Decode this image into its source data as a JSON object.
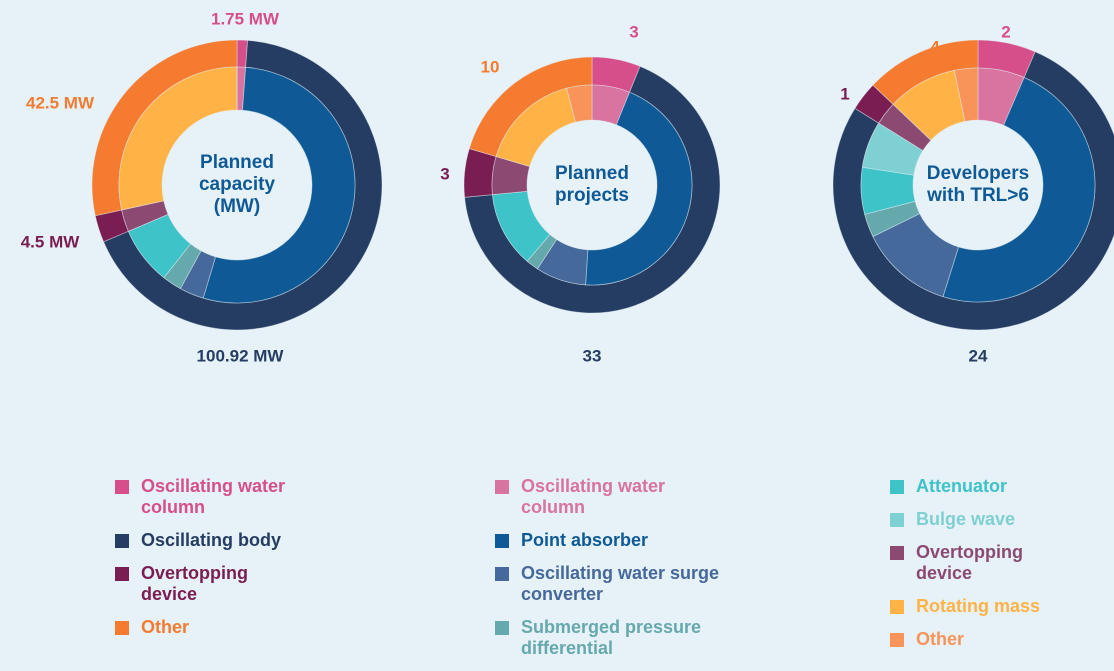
{
  "outer_categories": [
    {
      "name": "Oscillating water column",
      "color": "#d64f8a"
    },
    {
      "name": "Oscillating body",
      "color": "#263d63"
    },
    {
      "name": "Overtopping device",
      "color": "#7a1d52"
    },
    {
      "name": "Other",
      "color": "#f47b30"
    }
  ],
  "inner_categories": [
    {
      "name": "Oscillating water column",
      "color": "#d9739f"
    },
    {
      "name": "Point absorber",
      "color": "#0f5a96"
    },
    {
      "name": "Oscillating water surge converter",
      "color": "#46699b"
    },
    {
      "name": "Submerged pressure differential",
      "color": "#66a9ad"
    },
    {
      "name": "Attenuator",
      "color": "#3dc3c8"
    },
    {
      "name": "Bulge wave",
      "color": "#7fd0d3"
    },
    {
      "name": "Overtopping device",
      "color": "#8c4a73"
    },
    {
      "name": "Rotating mass",
      "color": "#ffb347"
    },
    {
      "name": "Other",
      "color": "#f8945a"
    }
  ],
  "chart_data": [
    {
      "type": "donut",
      "title": "Planned capacity (MW)",
      "outer_values": [
        1.75,
        100.92,
        4.5,
        42.5
      ],
      "outer_value_labels": [
        "1.75 MW",
        "100.92 MW",
        "4.5 MW",
        "42.5 MW"
      ],
      "inner_values": [
        1.75,
        80,
        5,
        4,
        11.92,
        0,
        4.5,
        42.5,
        0
      ]
    },
    {
      "type": "donut",
      "title": "Planned projects",
      "outer_values": [
        3,
        33,
        3,
        10
      ],
      "inner_values": [
        3,
        22,
        4,
        1,
        6,
        0,
        3,
        8,
        2
      ]
    },
    {
      "type": "donut",
      "title": "Developers with TRL>6",
      "outer_values": [
        2,
        24,
        1,
        4
      ],
      "inner_values": [
        2,
        15,
        4,
        1,
        2,
        2,
        1,
        3,
        1
      ]
    }
  ]
}
